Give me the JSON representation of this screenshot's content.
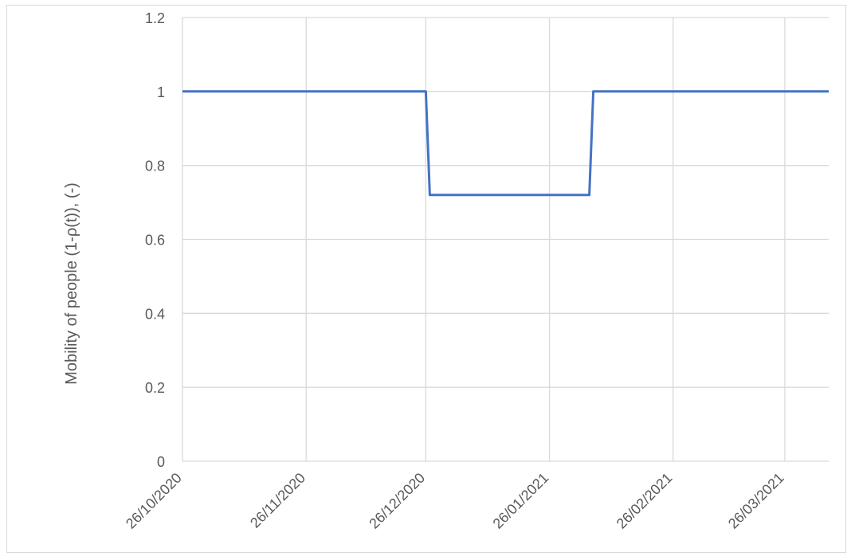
{
  "chart_data": {
    "type": "line",
    "title": "",
    "xlabel": "",
    "ylabel": "Mobility of people (1-ρ(t)), (-)",
    "ylim": [
      0,
      1.2
    ],
    "yticks": [
      0,
      0.2,
      0.4,
      0.6,
      0.8,
      1,
      1.2
    ],
    "yticklabels": [
      "0",
      "0.2",
      "0.4",
      "0.6",
      "0.8",
      "1",
      "1.2"
    ],
    "xlim": [
      "2020-10-26",
      "2021-04-06"
    ],
    "xticks": [
      "2020-10-26",
      "2020-11-26",
      "2020-12-26",
      "2021-01-26",
      "2021-02-26",
      "2021-03-26"
    ],
    "xticklabels": [
      "26/10/2020",
      "26/11/2020",
      "26/12/2020",
      "26/01/2021",
      "26/02/2021",
      "26/03/2021"
    ],
    "grid": true,
    "series": [
      {
        "color": "#4472c4",
        "x": [
          "2020-10-26",
          "2020-12-26",
          "2020-12-27",
          "2021-02-05",
          "2021-02-06",
          "2021-04-06"
        ],
        "y": [
          1,
          1,
          0.72,
          0.72,
          1,
          1
        ]
      }
    ]
  }
}
